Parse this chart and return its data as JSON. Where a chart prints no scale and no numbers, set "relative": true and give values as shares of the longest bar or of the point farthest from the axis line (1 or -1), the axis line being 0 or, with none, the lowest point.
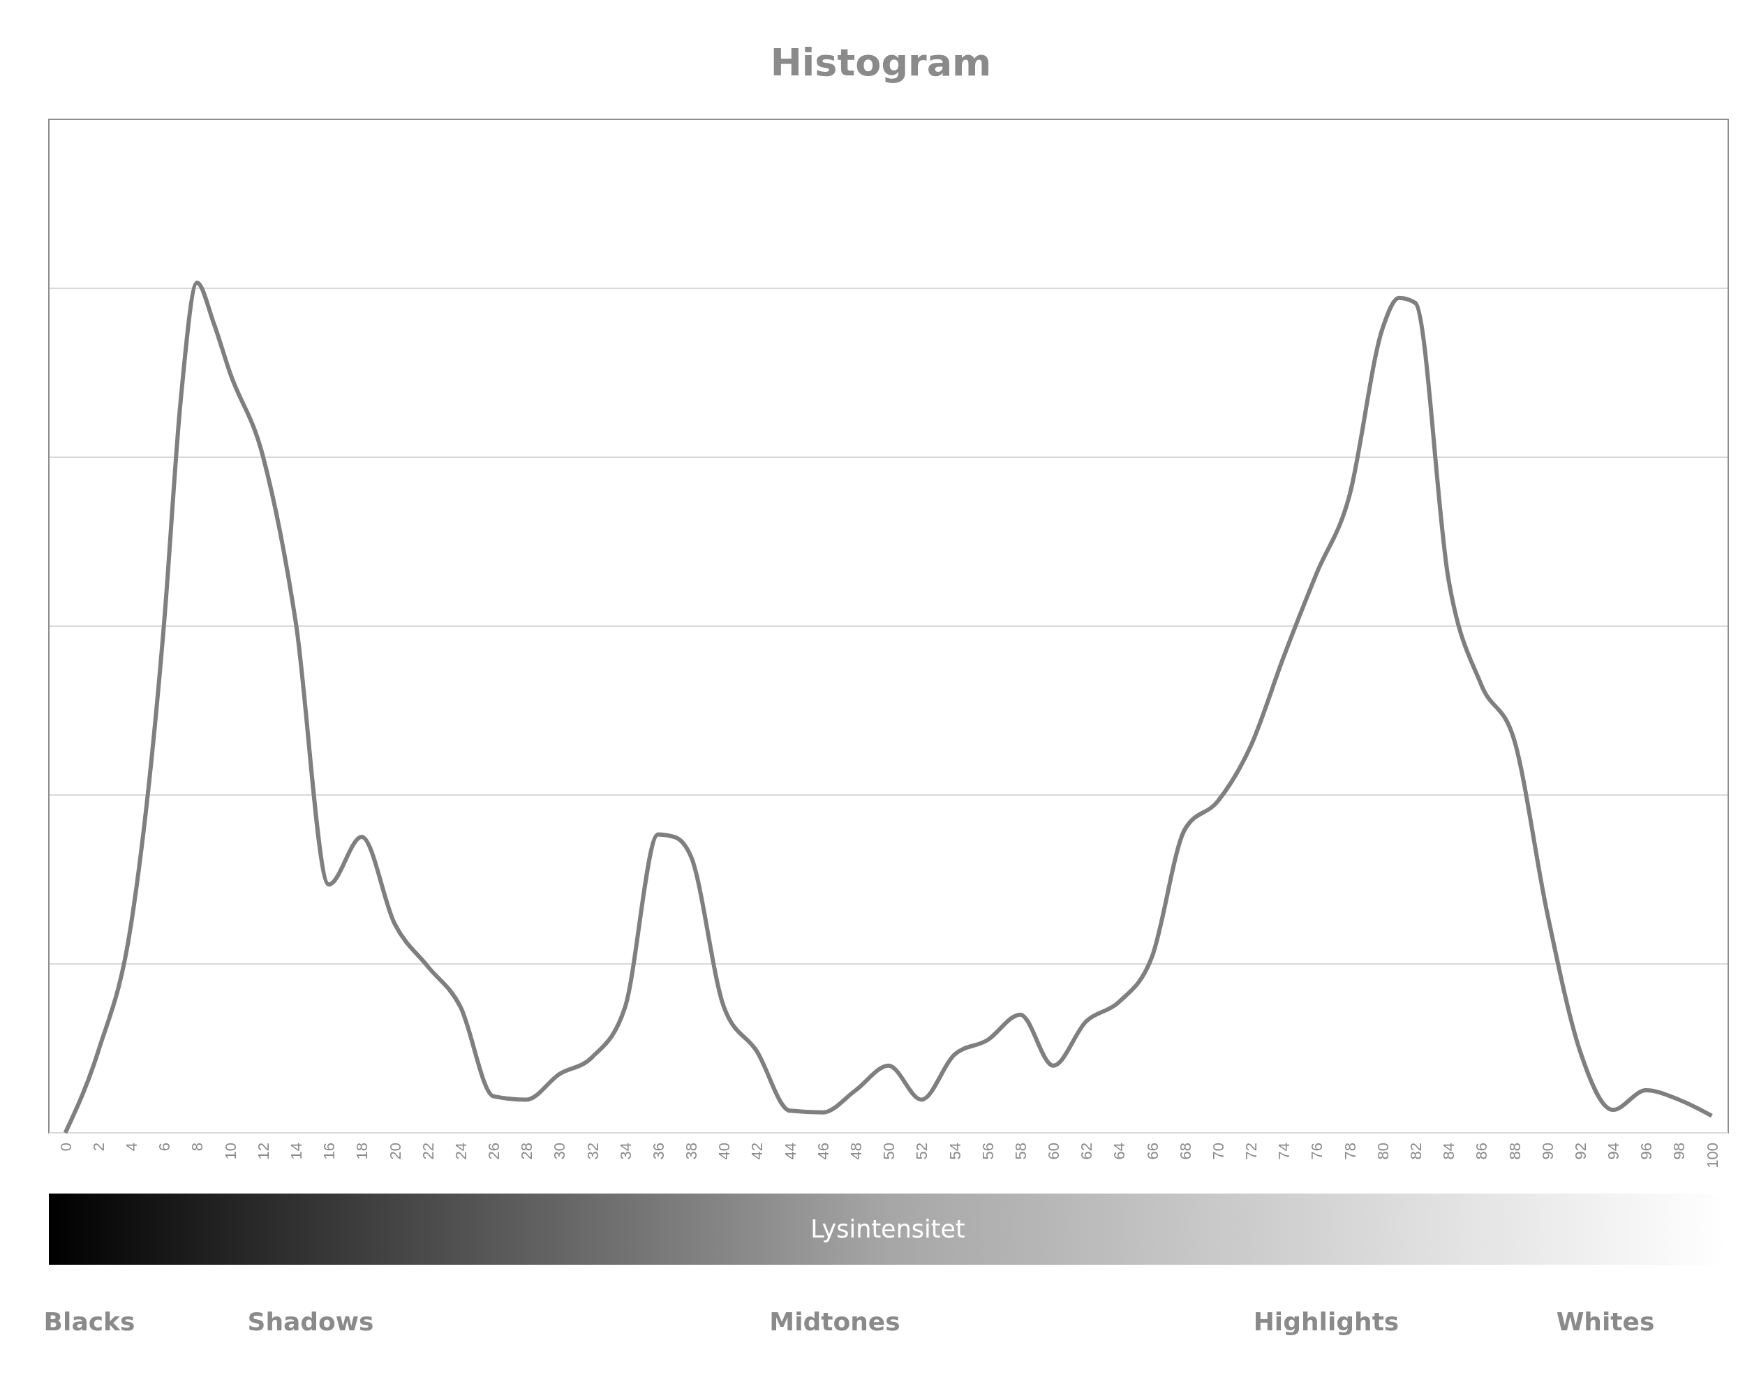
{
  "chart_data": {
    "type": "line",
    "title": "Histogram",
    "xlabel": "Lysintensitet",
    "relative": true,
    "grid": "y",
    "marker": "none",
    "line_style": "solid",
    "x": [
      0,
      2,
      4,
      6,
      7,
      8,
      9,
      10,
      12,
      14,
      16,
      18,
      20,
      22,
      24,
      26,
      28,
      30,
      32,
      34,
      36,
      37,
      38,
      40,
      42,
      44,
      46,
      48,
      50,
      52,
      54,
      56,
      58,
      60,
      62,
      64,
      66,
      68,
      70,
      72,
      74,
      76,
      78,
      80,
      81,
      82,
      84,
      86,
      88,
      90,
      92,
      94,
      96,
      98,
      100
    ],
    "series": [
      {
        "color": "#7f7f7f",
        "values": [
          0,
          0.096,
          0.246,
          0.6,
          0.86,
          1,
          0.953,
          0.894,
          0.796,
          0.6,
          0.292,
          0.348,
          0.246,
          0.196,
          0.148,
          0.043,
          0.039,
          0.069,
          0.089,
          0.148,
          0.351,
          0.348,
          0.325,
          0.148,
          0.096,
          0.026,
          0.024,
          0.05,
          0.079,
          0.039,
          0.092,
          0.109,
          0.139,
          0.079,
          0.131,
          0.154,
          0.207,
          0.357,
          0.39,
          0.455,
          0.56,
          0.658,
          0.75,
          0.946,
          0.982,
          0.976,
          0.652,
          0.527,
          0.462,
          0.259,
          0.096,
          0.027,
          0.05,
          0.039,
          0.02
        ]
      }
    ],
    "xlim": [
      -1,
      101
    ],
    "xticks": [
      0,
      2,
      4,
      6,
      8,
      10,
      12,
      14,
      16,
      18,
      20,
      22,
      24,
      26,
      28,
      30,
      32,
      34,
      36,
      38,
      40,
      42,
      44,
      46,
      48,
      50,
      52,
      54,
      56,
      58,
      60,
      62,
      64,
      66,
      68,
      70,
      72,
      74,
      76,
      78,
      80,
      82,
      84,
      86,
      88,
      90,
      92,
      94,
      96,
      98,
      100
    ],
    "annotations": [
      "Blacks",
      "Shadows",
      "Midtones",
      "Highlights",
      "Whites"
    ]
  }
}
